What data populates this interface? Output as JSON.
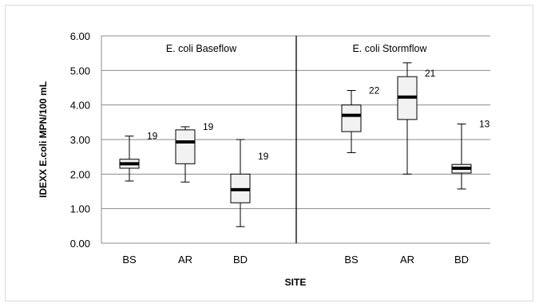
{
  "chart_data": {
    "type": "boxplot",
    "ylabel": "IDEXX E.coli MPN/100 mL",
    "xlabel": "SITE",
    "ylim": [
      0,
      6
    ],
    "yticks": [
      "0.00",
      "1.00",
      "2.00",
      "3.00",
      "4.00",
      "5.00",
      "6.00"
    ],
    "grid": true,
    "panels": [
      {
        "label": "E. coli Baseflow",
        "groups": [
          {
            "category": "BS",
            "min": 1.8,
            "q1": 2.17,
            "median": 2.3,
            "q3": 2.43,
            "max": 3.1,
            "n": "19"
          },
          {
            "category": "AR",
            "min": 1.77,
            "q1": 2.3,
            "median": 2.93,
            "q3": 3.28,
            "max": 3.37,
            "n": "19"
          },
          {
            "category": "BD",
            "min": 0.48,
            "q1": 1.17,
            "median": 1.55,
            "q3": 2.0,
            "max": 3.0,
            "n": "19"
          }
        ]
      },
      {
        "label": "E. coli Stormflow",
        "groups": [
          {
            "category": "BS",
            "min": 2.62,
            "q1": 3.23,
            "median": 3.7,
            "q3": 4.0,
            "max": 4.42,
            "n": "22"
          },
          {
            "category": "AR",
            "min": 2.0,
            "q1": 3.58,
            "median": 4.23,
            "q3": 4.82,
            "max": 5.22,
            "n": "21"
          },
          {
            "category": "BD",
            "min": 1.57,
            "q1": 2.03,
            "median": 2.17,
            "q3": 2.28,
            "max": 3.45,
            "n": "13"
          }
        ]
      }
    ]
  }
}
